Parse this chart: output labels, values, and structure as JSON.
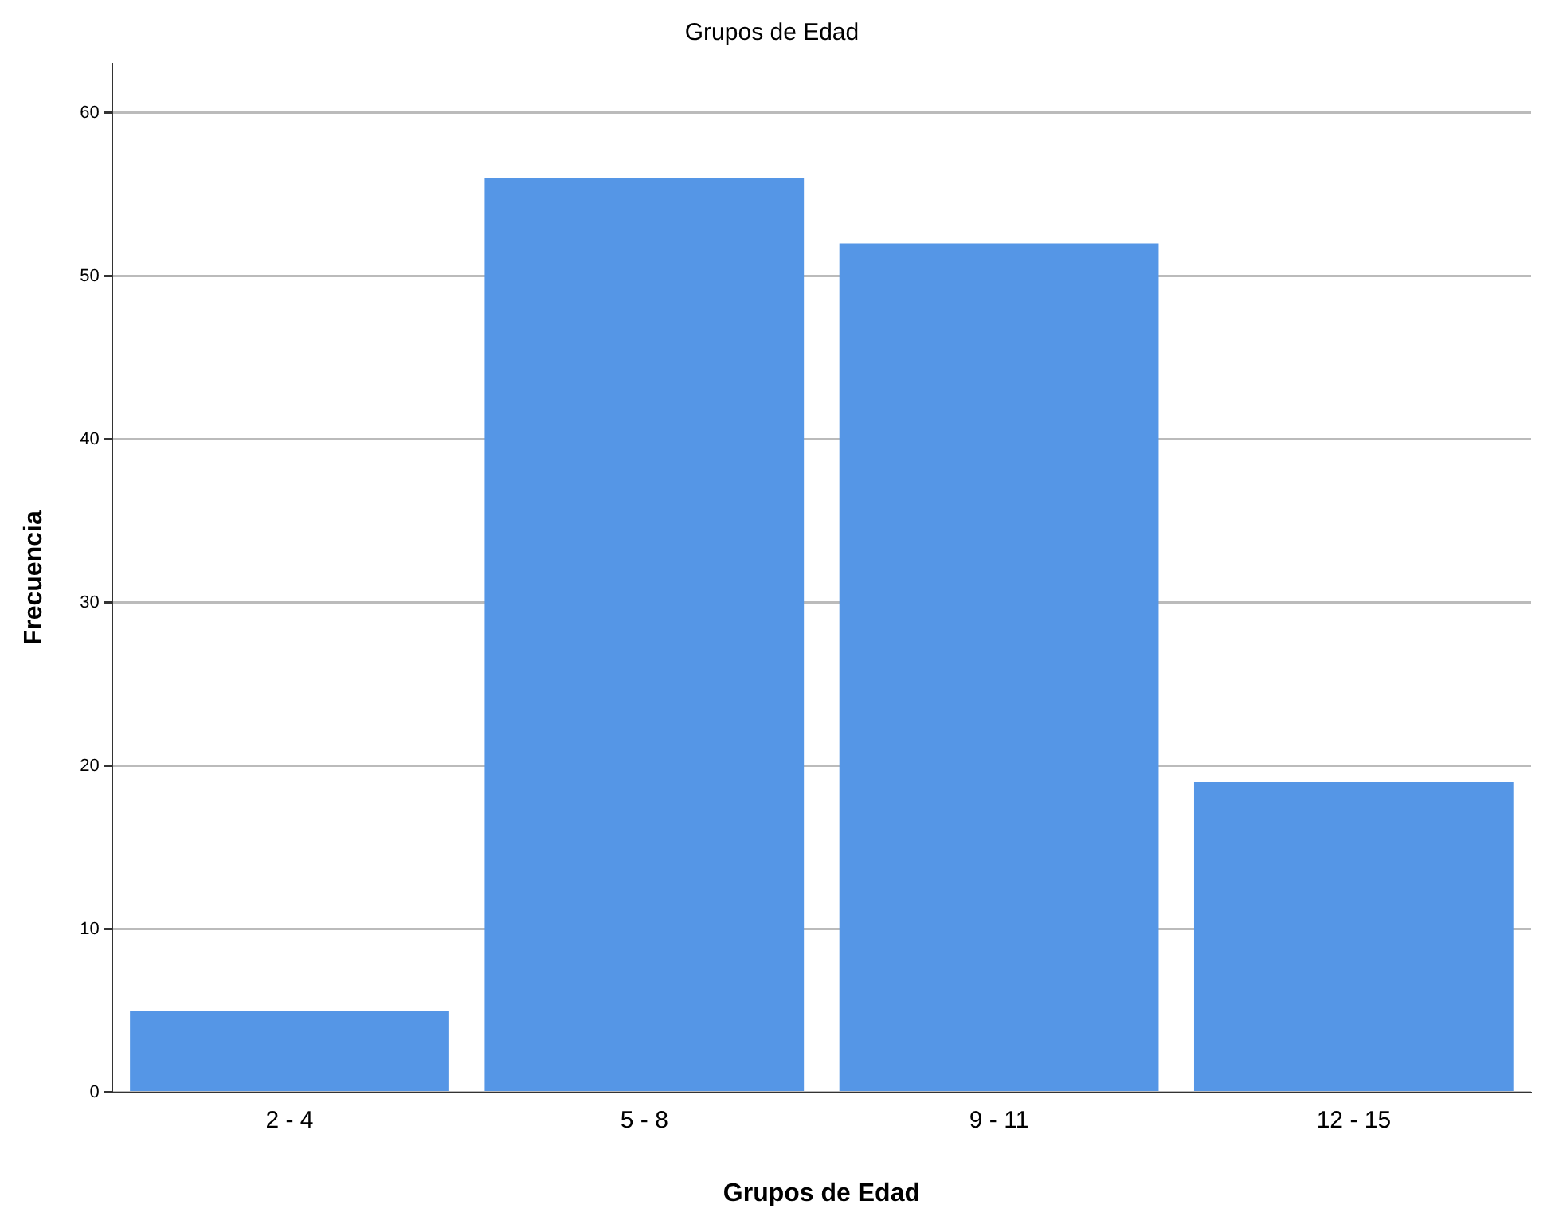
{
  "chart_data": {
    "type": "bar",
    "title": "Grupos de Edad",
    "xlabel": "Grupos de Edad",
    "ylabel": "Frecuencia",
    "categories": [
      "2 - 4",
      "5 - 8",
      "9 - 11",
      "12 - 15"
    ],
    "values": [
      5,
      56,
      52,
      19
    ],
    "color": "#5596e6",
    "ylim": [
      0,
      63
    ],
    "yticks": [
      0,
      10,
      20,
      30,
      40,
      50,
      60
    ],
    "grid": "y"
  }
}
